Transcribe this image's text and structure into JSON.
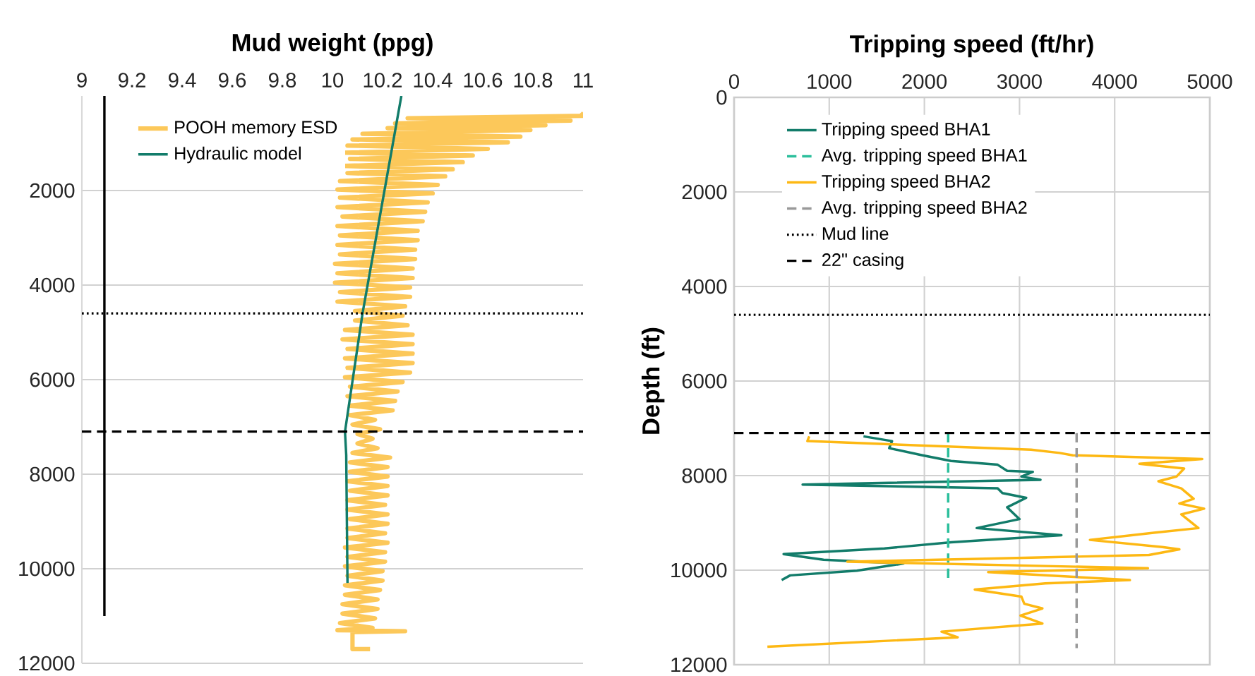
{
  "chart_data": [
    {
      "type": "line",
      "xlabel": "Mud weight (ppg)",
      "xlim": [
        9,
        11
      ],
      "xticks": [
        9,
        9.2,
        9.4,
        9.6,
        9.8,
        10,
        10.2,
        10.4,
        10.6,
        10.8,
        11
      ],
      "ylim": [
        12000,
        0
      ],
      "yticks": [
        2000,
        4000,
        6000,
        8000,
        10000,
        12000
      ],
      "grid": "y",
      "legend": "top left",
      "series": [
        {
          "name": "POOH memory ESD",
          "color": "#fcc85a",
          "x": [
            10.99,
            11.0,
            10.3,
            10.95,
            10.25,
            10.85,
            10.22,
            10.79,
            10.12,
            10.75,
            10.08,
            10.7,
            10.06,
            10.62,
            10.05,
            10.56,
            10.07,
            10.52,
            10.04,
            10.48,
            10.06,
            10.45,
            10.03,
            10.42,
            10.02,
            10.4,
            10.03,
            10.38,
            10.02,
            10.37,
            10.04,
            10.36,
            10.02,
            10.34,
            10.03,
            10.34,
            10.02,
            10.33,
            10.03,
            10.33,
            10.01,
            10.32,
            10.02,
            10.32,
            10.01,
            10.31,
            10.03,
            10.31,
            10.02,
            10.29,
            10.09,
            10.28,
            10.09,
            10.3,
            10.05,
            10.32,
            10.04,
            10.32,
            10.06,
            10.32,
            10.05,
            10.32,
            10.06,
            10.31,
            10.05,
            10.28,
            10.07,
            10.26,
            10.06,
            10.25,
            10.07,
            10.24,
            10.07,
            10.17,
            10.08,
            10.19,
            10.1,
            10.16,
            10.1,
            10.18,
            10.08,
            10.23,
            10.07,
            10.22,
            10.07,
            10.22,
            10.06,
            10.22,
            10.07,
            10.22,
            10.06,
            10.21,
            10.06,
            10.22,
            10.07,
            10.22,
            10.06,
            10.21,
            10.06,
            10.22,
            10.05,
            10.21,
            10.06,
            10.21,
            10.05,
            10.2,
            10.06,
            10.2,
            10.05,
            10.19,
            10.05,
            10.18,
            10.04,
            10.18,
            10.04,
            10.17,
            10.03,
            10.16,
            10.02,
            10.29,
            10.08,
            10.08,
            10.15
          ],
          "values": [
            360,
            420,
            470,
            520,
            580,
            620,
            680,
            720,
            800,
            860,
            920,
            980,
            1050,
            1120,
            1200,
            1260,
            1330,
            1400,
            1480,
            1550,
            1630,
            1700,
            1800,
            1880,
            1980,
            2060,
            2150,
            2250,
            2350,
            2450,
            2550,
            2650,
            2750,
            2850,
            2950,
            3050,
            3150,
            3250,
            3350,
            3450,
            3550,
            3650,
            3750,
            3850,
            3950,
            4050,
            4150,
            4250,
            4350,
            4450,
            4550,
            4650,
            4750,
            4850,
            4950,
            5050,
            5150,
            5250,
            5350,
            5450,
            5550,
            5650,
            5750,
            5850,
            5950,
            6050,
            6150,
            6250,
            6350,
            6450,
            6550,
            6650,
            6750,
            6850,
            6950,
            7050,
            7150,
            7250,
            7350,
            7450,
            7550,
            7650,
            7750,
            7850,
            7950,
            8050,
            8150,
            8250,
            8350,
            8450,
            8550,
            8650,
            8750,
            8850,
            8950,
            9050,
            9150,
            9250,
            9350,
            9450,
            9550,
            9650,
            9750,
            9850,
            9950,
            10050,
            10150,
            10250,
            10350,
            10450,
            10550,
            10650,
            10750,
            10850,
            10950,
            11050,
            11150,
            11250,
            11300,
            11320,
            11340,
            11700,
            11700
          ]
        },
        {
          "name": "Hydraulic model",
          "color": "#127c6a",
          "x": [
            10.275,
            10.12,
            10.05,
            10.055,
            10.06
          ],
          "values": [
            0,
            4600,
            7100,
            7600,
            10300
          ]
        },
        {
          "color": "#000000",
          "x": [
            9.09,
            9.09
          ],
          "values": [
            0,
            11000
          ]
        }
      ],
      "ref_lines": [
        {
          "axis": "y",
          "value": 4600,
          "color": "#000000",
          "line_style": "dotted"
        },
        {
          "axis": "y",
          "value": 7100,
          "color": "#000000",
          "line_style": "dashed"
        }
      ]
    },
    {
      "type": "line",
      "xlabel": "Tripping speed (ft/hr)",
      "ylabel": "Depth (ft)",
      "xlim": [
        0,
        5000
      ],
      "xticks": [
        0,
        1000,
        2000,
        3000,
        4000,
        5000
      ],
      "ylim": [
        12000,
        0
      ],
      "yticks": [
        0,
        2000,
        4000,
        6000,
        8000,
        10000,
        12000
      ],
      "grid": true,
      "legend": "top left",
      "series": [
        {
          "name": "Tripping speed BHA1",
          "color": "#127c6a",
          "x": [
            1360,
            1660,
            1630,
            1980,
            2280,
            2770,
            2870,
            3140,
            3020,
            3220,
            720,
            2770,
            2820,
            3070,
            2870,
            3000,
            2550,
            3440,
            2280,
            1580,
            520,
            940,
            1780,
            1290,
            590,
            500
          ],
          "values": [
            7170,
            7270,
            7420,
            7570,
            7690,
            7770,
            7900,
            7920,
            8020,
            8090,
            8190,
            8270,
            8370,
            8470,
            8670,
            8920,
            9110,
            9260,
            9410,
            9540,
            9660,
            9780,
            9860,
            10010,
            10110,
            10210
          ]
        },
        {
          "name": "Avg. tripping speed BHA1",
          "color": "#2cbf9c",
          "line_style": "dashed",
          "x": [
            2250,
            2250
          ],
          "values": [
            7100,
            10200
          ]
        },
        {
          "name": "Tripping speed BHA2",
          "color": "#fdb813",
          "x": [
            790,
            770,
            3120,
            3420,
            3560,
            4920,
            4260,
            4730,
            4650,
            4460,
            4700,
            4830,
            4680,
            4940,
            4700,
            4880,
            4410,
            3740,
            4500,
            4680,
            4360,
            2570,
            1190,
            4350,
            2670,
            4160,
            3270,
            2530,
            3020,
            3050,
            3240,
            3010,
            3240,
            2180,
            2350,
            350
          ],
          "values": [
            7170,
            7270,
            7450,
            7520,
            7570,
            7650,
            7750,
            7850,
            8020,
            8120,
            8270,
            8490,
            8590,
            8700,
            8820,
            9110,
            9210,
            9360,
            9510,
            9560,
            9680,
            9760,
            9820,
            9960,
            10040,
            10210,
            10280,
            10410,
            10560,
            10710,
            10810,
            10960,
            11130,
            11300,
            11420,
            11620
          ]
        },
        {
          "name": "Avg. tripping speed BHA2",
          "color": "#999999",
          "line_style": "dashed",
          "x": [
            3600,
            3600
          ],
          "values": [
            7100,
            11650
          ]
        }
      ],
      "ref_lines": [
        {
          "axis": "y",
          "value": 4600,
          "label": "Mud line",
          "color": "#000000",
          "line_style": "dotted"
        },
        {
          "axis": "y",
          "value": 7100,
          "label": "22\" casing",
          "color": "#000000",
          "line_style": "dashed"
        }
      ]
    }
  ]
}
